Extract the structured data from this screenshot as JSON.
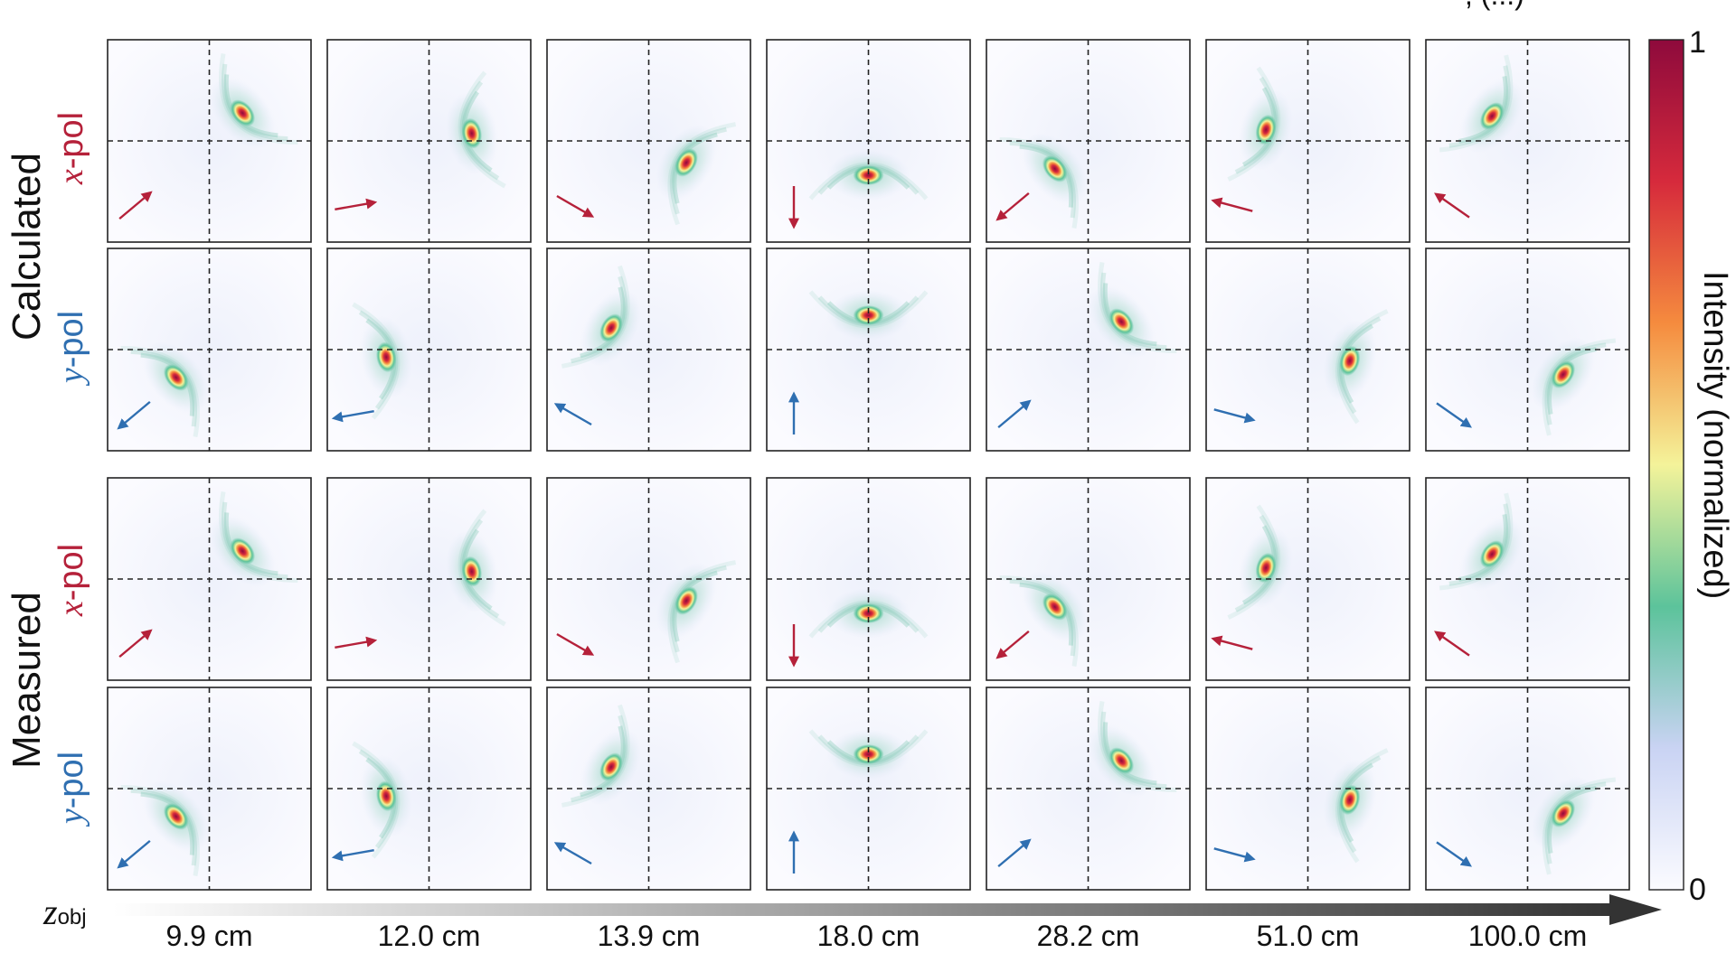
{
  "groups": [
    "Calculated",
    "Measured"
  ],
  "pols": [
    {
      "prefix": "x",
      "suffix": "-pol",
      "color": "#b5213a"
    },
    {
      "prefix": "y",
      "suffix": "-pol",
      "color": "#2f6fb1"
    }
  ],
  "axis": {
    "symbol": "z",
    "subscript": "obj"
  },
  "distances": [
    "9.9 cm",
    "12.0 cm",
    "13.9 cm",
    "18.0 cm",
    "28.2 cm",
    "51.0 cm",
    "100.0 cm"
  ],
  "colorbar": {
    "max": "1",
    "min": "0",
    "title": "Intensity (normalized)",
    "stops": [
      "#fbfbff",
      "#c9d3f3",
      "#5cc39b",
      "#f4f39a",
      "#f58b3e",
      "#d62a3c",
      "#8e0a3c"
    ]
  },
  "top_fragment": ", (...)",
  "chart_data": {
    "type": "heatmap",
    "description_labels": {
      "rows": [
        "Calculated x-pol",
        "Calculated y-pol",
        "Measured x-pol",
        "Measured y-pol"
      ],
      "columns": [
        "9.9 cm",
        "12.0 cm",
        "13.9 cm",
        "18.0 cm",
        "28.2 cm",
        "51.0 cm",
        "100.0 cm"
      ]
    },
    "colorbar_range": [
      0,
      1
    ],
    "x_spot_angles_deg": [
      40,
      10,
      -30,
      -90,
      -140,
      165,
      145
    ],
    "y_spot_angles_deg": [
      -140,
      -170,
      150,
      90,
      40,
      -15,
      -35
    ]
  }
}
